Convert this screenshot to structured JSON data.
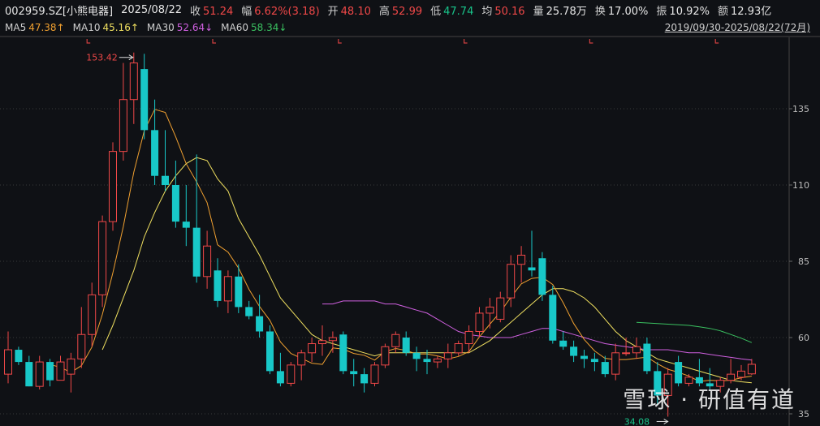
{
  "header": {
    "code": "002959.SZ[小熊电器]",
    "date": "2025/08/22",
    "close_label": "收",
    "close": "51.24",
    "amp_label": "幅",
    "amp": "6.62%(3.18)",
    "open_label": "开",
    "open": "48.10",
    "high_label": "高",
    "high": "52.99",
    "low_label": "低",
    "low": "47.74",
    "avg_label": "均",
    "avg": "50.16",
    "vol_label": "量",
    "vol": "25.78万",
    "turn_label": "换",
    "turn": "17.00%",
    "swing_label": "振",
    "swing": "10.92%",
    "amount_label": "额",
    "amount": "12.93亿"
  },
  "ma_legend": {
    "ma5_label": "MA5",
    "ma5": "47.38↑",
    "ma10_label": "MA10",
    "ma10": "45.16↑",
    "ma30_label": "MA30",
    "ma30": "52.64↓",
    "ma60_label": "MA60",
    "ma60": "58.34↓"
  },
  "range_text": "2019/09/30-2025/08/22(72月)",
  "watermark": "雪球 · 研值有道",
  "colors": {
    "up": "#f04848",
    "down": "#18c8c8",
    "ma5": "#f0a030",
    "ma10": "#f0e060",
    "ma30": "#d060e0",
    "ma60": "#3ac060",
    "grid": "#3a3a3a"
  },
  "chart_data": {
    "type": "candlestick",
    "period": "monthly",
    "y_ticks": [
      "135",
      "110",
      "85",
      "60",
      "35"
    ],
    "ylim": [
      35,
      150
    ],
    "annotations": {
      "max_label": "153.42",
      "max_value": 153.42,
      "min_label": "34.08",
      "min_value": 34.08
    },
    "candles": [
      {
        "o": 48,
        "h": 62,
        "l": 45,
        "c": 56
      },
      {
        "o": 56,
        "h": 57,
        "l": 51,
        "c": 52
      },
      {
        "o": 52,
        "h": 54,
        "l": 44,
        "c": 44
      },
      {
        "o": 44,
        "h": 54,
        "l": 43,
        "c": 52
      },
      {
        "o": 52,
        "h": 53,
        "l": 44,
        "c": 46
      },
      {
        "o": 46,
        "h": 54,
        "l": 46,
        "c": 52
      },
      {
        "o": 48,
        "h": 55,
        "l": 42,
        "c": 53
      },
      {
        "o": 53,
        "h": 70,
        "l": 50,
        "c": 61
      },
      {
        "o": 61,
        "h": 78,
        "l": 57,
        "c": 74
      },
      {
        "o": 74,
        "h": 100,
        "l": 70,
        "c": 98
      },
      {
        "o": 98,
        "h": 124,
        "l": 95,
        "c": 121
      },
      {
        "o": 121,
        "h": 150,
        "l": 118,
        "c": 138
      },
      {
        "o": 138,
        "h": 153.42,
        "l": 130,
        "c": 150
      },
      {
        "o": 148,
        "h": 153,
        "l": 125,
        "c": 128
      },
      {
        "o": 128,
        "h": 138,
        "l": 110,
        "c": 113
      },
      {
        "o": 113,
        "h": 128,
        "l": 108,
        "c": 110
      },
      {
        "o": 110,
        "h": 118,
        "l": 96,
        "c": 98
      },
      {
        "o": 98,
        "h": 110,
        "l": 90,
        "c": 96
      },
      {
        "o": 96,
        "h": 120,
        "l": 78,
        "c": 80
      },
      {
        "o": 80,
        "h": 95,
        "l": 76,
        "c": 90
      },
      {
        "o": 82,
        "h": 86,
        "l": 70,
        "c": 72
      },
      {
        "o": 72,
        "h": 82,
        "l": 68,
        "c": 80
      },
      {
        "o": 80,
        "h": 84,
        "l": 68,
        "c": 70
      },
      {
        "o": 70,
        "h": 72,
        "l": 66,
        "c": 67
      },
      {
        "o": 67,
        "h": 74,
        "l": 60,
        "c": 62
      },
      {
        "o": 62,
        "h": 64,
        "l": 48,
        "c": 49
      },
      {
        "o": 49,
        "h": 55,
        "l": 44,
        "c": 45
      },
      {
        "o": 45,
        "h": 52,
        "l": 44,
        "c": 51
      },
      {
        "o": 51,
        "h": 56,
        "l": 46,
        "c": 55
      },
      {
        "o": 55,
        "h": 60,
        "l": 52,
        "c": 58
      },
      {
        "o": 58,
        "h": 64,
        "l": 54,
        "c": 59
      },
      {
        "o": 59,
        "h": 62,
        "l": 55,
        "c": 60
      },
      {
        "o": 61,
        "h": 62,
        "l": 48,
        "c": 49
      },
      {
        "o": 49,
        "h": 53,
        "l": 44,
        "c": 48
      },
      {
        "o": 48,
        "h": 50,
        "l": 42,
        "c": 45
      },
      {
        "o": 45,
        "h": 52,
        "l": 44,
        "c": 51
      },
      {
        "o": 51,
        "h": 58,
        "l": 50,
        "c": 57
      },
      {
        "o": 57,
        "h": 62,
        "l": 55,
        "c": 61
      },
      {
        "o": 60,
        "h": 62,
        "l": 54,
        "c": 55
      },
      {
        "o": 55,
        "h": 57,
        "l": 49,
        "c": 53
      },
      {
        "o": 53,
        "h": 56,
        "l": 48,
        "c": 52
      },
      {
        "o": 52,
        "h": 54,
        "l": 50,
        "c": 53
      },
      {
        "o": 53,
        "h": 58,
        "l": 50,
        "c": 55
      },
      {
        "o": 55,
        "h": 59,
        "l": 54,
        "c": 58
      },
      {
        "o": 58,
        "h": 64,
        "l": 55,
        "c": 62
      },
      {
        "o": 62,
        "h": 70,
        "l": 60,
        "c": 68
      },
      {
        "o": 68,
        "h": 73,
        "l": 63,
        "c": 70
      },
      {
        "o": 66,
        "h": 75,
        "l": 65,
        "c": 73
      },
      {
        "o": 73,
        "h": 87,
        "l": 70,
        "c": 84
      },
      {
        "o": 84,
        "h": 90,
        "l": 78,
        "c": 87
      },
      {
        "o": 83,
        "h": 95,
        "l": 80,
        "c": 82
      },
      {
        "o": 86,
        "h": 88,
        "l": 72,
        "c": 74
      },
      {
        "o": 74,
        "h": 77,
        "l": 58,
        "c": 59
      },
      {
        "o": 59,
        "h": 62,
        "l": 56,
        "c": 57
      },
      {
        "o": 57,
        "h": 59,
        "l": 52,
        "c": 54
      },
      {
        "o": 54,
        "h": 56,
        "l": 50,
        "c": 53
      },
      {
        "o": 53,
        "h": 55,
        "l": 49,
        "c": 52
      },
      {
        "o": 52,
        "h": 54,
        "l": 47,
        "c": 48
      },
      {
        "o": 48,
        "h": 58,
        "l": 46,
        "c": 55
      },
      {
        "o": 55,
        "h": 60,
        "l": 54,
        "c": 55
      },
      {
        "o": 55,
        "h": 60,
        "l": 53,
        "c": 57
      },
      {
        "o": 58,
        "h": 60,
        "l": 48,
        "c": 49
      },
      {
        "o": 49,
        "h": 52,
        "l": 38,
        "c": 41
      },
      {
        "o": 41,
        "h": 50,
        "l": 34.08,
        "c": 48
      },
      {
        "o": 52,
        "h": 54,
        "l": 44,
        "c": 45
      },
      {
        "o": 45,
        "h": 48,
        "l": 44,
        "c": 47
      },
      {
        "o": 47,
        "h": 53,
        "l": 44,
        "c": 45
      },
      {
        "o": 45,
        "h": 50,
        "l": 43,
        "c": 44
      },
      {
        "o": 44,
        "h": 47,
        "l": 42,
        "c": 46
      },
      {
        "o": 46,
        "h": 53,
        "l": 45,
        "c": 48
      },
      {
        "o": 47,
        "h": 51,
        "l": 46,
        "c": 49
      },
      {
        "o": 48.1,
        "h": 52.99,
        "l": 47.74,
        "c": 51.24
      }
    ],
    "ma5": [
      null,
      null,
      null,
      null,
      51.2,
      50.2,
      48.6,
      50.8,
      56.9,
      67.6,
      81.2,
      96.4,
      114.2,
      127.8,
      134.8,
      133.8,
      125.8,
      117,
      111,
      104.2,
      90.4,
      88,
      82.8,
      75.8,
      70.2,
      65.6,
      58.6,
      54.8,
      53.2,
      51.6,
      51.2,
      56.6,
      56.2,
      54.8,
      54.2,
      52.6,
      55.4,
      56.4,
      55.8,
      54.6,
      54.6,
      54,
      53,
      53.8,
      55.4,
      60.2,
      64.4,
      68.4,
      73.2,
      77.6,
      79.4,
      79.8,
      77.4,
      71.4,
      64.6,
      59.4,
      55.6,
      53.2,
      52.8,
      52.8,
      53.2,
      53.6,
      51.4,
      49.6,
      48.6,
      47.4,
      45.6,
      46,
      45.8,
      46,
      46.8,
      47.38
    ],
    "ma10": [
      null,
      null,
      null,
      null,
      null,
      null,
      null,
      null,
      null,
      56,
      64,
      73,
      82,
      93,
      101,
      108,
      113,
      117,
      119,
      118,
      112,
      108,
      99,
      93,
      87,
      80,
      73,
      69,
      65,
      61,
      59,
      58,
      57,
      56,
      55,
      54,
      55,
      55,
      55,
      55,
      55,
      55,
      55,
      55,
      55,
      57,
      59,
      62,
      65,
      68,
      71,
      74,
      76,
      76,
      75,
      73,
      70,
      66,
      62,
      59,
      57,
      55,
      53,
      52,
      51,
      50,
      49,
      48,
      47,
      46,
      45.5,
      45.16
    ],
    "ma30": [
      null,
      null,
      null,
      null,
      null,
      null,
      null,
      null,
      null,
      null,
      null,
      null,
      null,
      null,
      null,
      null,
      null,
      null,
      null,
      null,
      null,
      null,
      null,
      null,
      null,
      null,
      null,
      null,
      null,
      null,
      71,
      71,
      72,
      72,
      72,
      72,
      71,
      71,
      70,
      69,
      68,
      66,
      64,
      62,
      61,
      60.5,
      60,
      60,
      60,
      61,
      62,
      63,
      63,
      62,
      61,
      60,
      59,
      58,
      57.5,
      57,
      56.5,
      56,
      56,
      56,
      55.5,
      55,
      55,
      54.5,
      54,
      53.5,
      53,
      52.64
    ],
    "ma60": [
      null,
      null,
      null,
      null,
      null,
      null,
      null,
      null,
      null,
      null,
      null,
      null,
      null,
      null,
      null,
      null,
      null,
      null,
      null,
      null,
      null,
      null,
      null,
      null,
      null,
      null,
      null,
      null,
      null,
      null,
      null,
      null,
      null,
      null,
      null,
      null,
      null,
      null,
      null,
      null,
      null,
      null,
      null,
      null,
      null,
      null,
      null,
      null,
      null,
      null,
      null,
      null,
      null,
      null,
      null,
      null,
      null,
      null,
      null,
      null,
      65,
      64.8,
      64.6,
      64.4,
      64.2,
      64,
      63.5,
      63,
      62.2,
      61,
      59.8,
      58.34
    ]
  }
}
